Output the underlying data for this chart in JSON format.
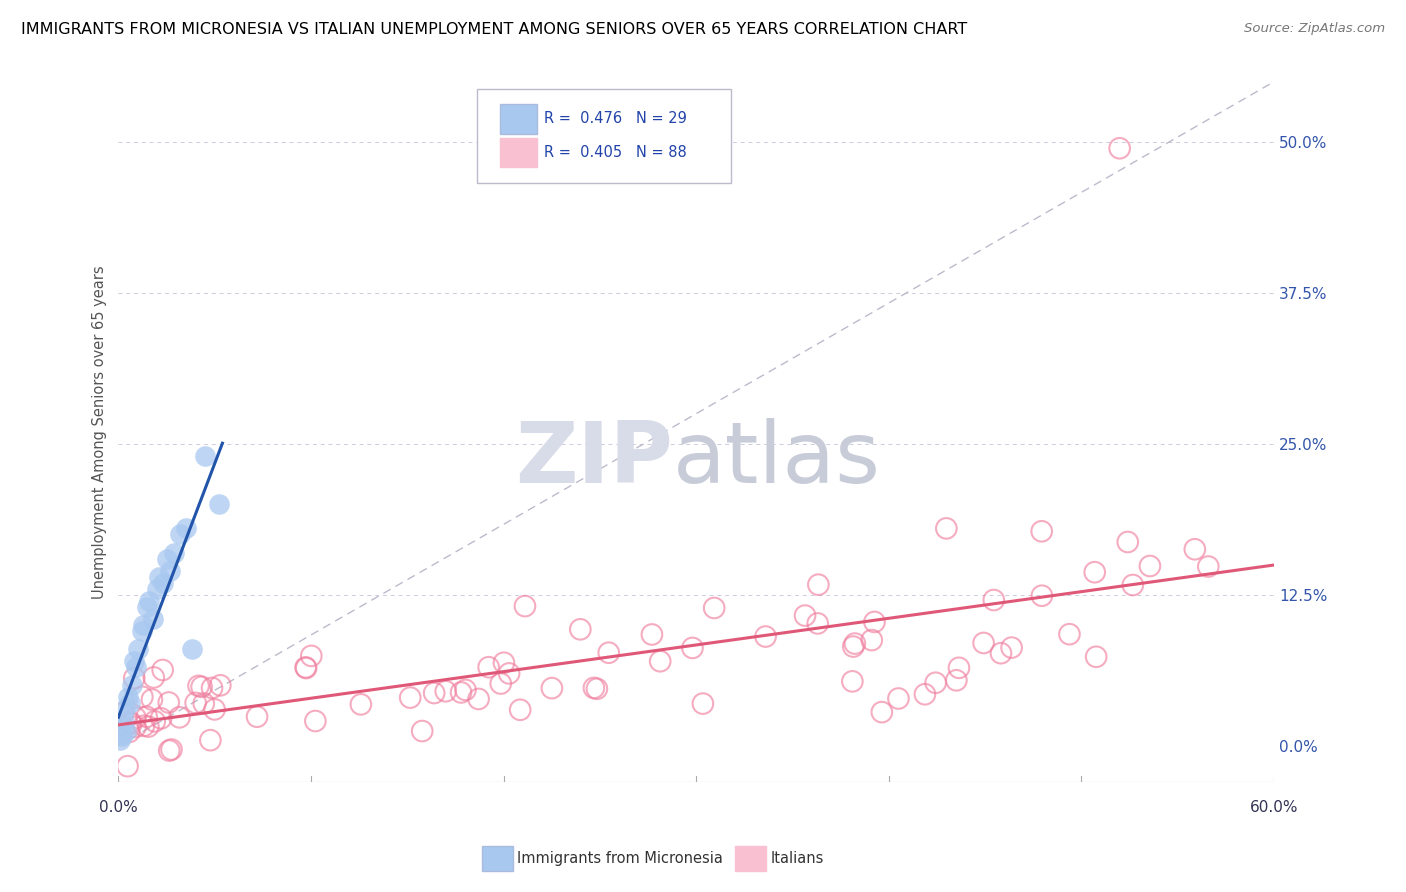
{
  "title": "IMMIGRANTS FROM MICRONESIA VS ITALIAN UNEMPLOYMENT AMONG SENIORS OVER 65 YEARS CORRELATION CHART",
  "source": "Source: ZipAtlas.com",
  "ylabel": "Unemployment Among Seniors over 65 years",
  "yticks_right_vals": [
    0.0,
    12.5,
    25.0,
    37.5,
    50.0
  ],
  "xlim": [
    0,
    60
  ],
  "ylim_data": [
    -3,
    55
  ],
  "legend_blue_r": "0.476",
  "legend_blue_n": "29",
  "legend_pink_r": "0.405",
  "legend_pink_n": "88",
  "blue_fill_color": "#A8C8F0",
  "pink_edge_color": "#F080A0",
  "blue_solid_color": "#4488CC",
  "pink_line_color": "#E05878",
  "blue_line_color": "#2255AA",
  "diagonal_color": "#BBBBCC",
  "grid_color": "#CCCCDD",
  "watermark_zip_color": "#D8DCE8",
  "watermark_atlas_color": "#C8CCD8"
}
